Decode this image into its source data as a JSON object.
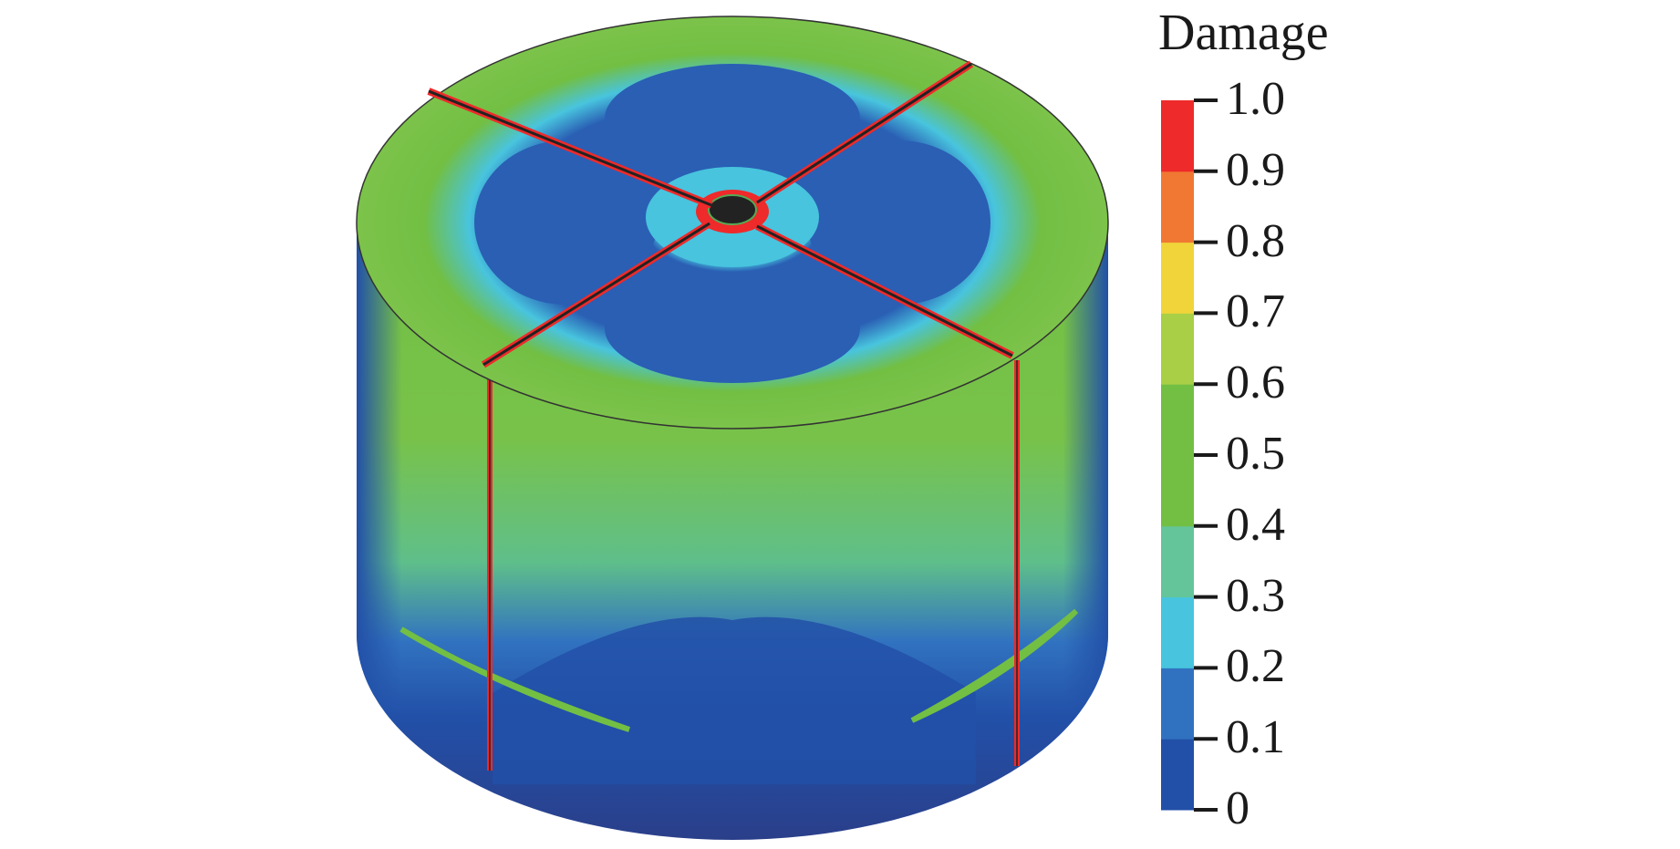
{
  "chart_data": {
    "type": "heatmap",
    "title": "",
    "colorbar": {
      "title": "Damage",
      "range": [
        0,
        1.0
      ],
      "ticks": [
        "1.0",
        "0.9",
        "0.8",
        "0.7",
        "0.6",
        "0.5",
        "0.4",
        "0.3",
        "0.2",
        "0.1",
        "0"
      ],
      "tick_values": [
        1.0,
        0.9,
        0.8,
        0.7,
        0.6,
        0.5,
        0.4,
        0.3,
        0.2,
        0.1,
        0
      ],
      "colors": [
        "#2250a8",
        "#3172c0",
        "#48c4de",
        "#64c59a",
        "#72bf44",
        "#72bf44",
        "#a8cf45",
        "#f0d43a",
        "#f07832",
        "#ee2a2a"
      ]
    }
  }
}
